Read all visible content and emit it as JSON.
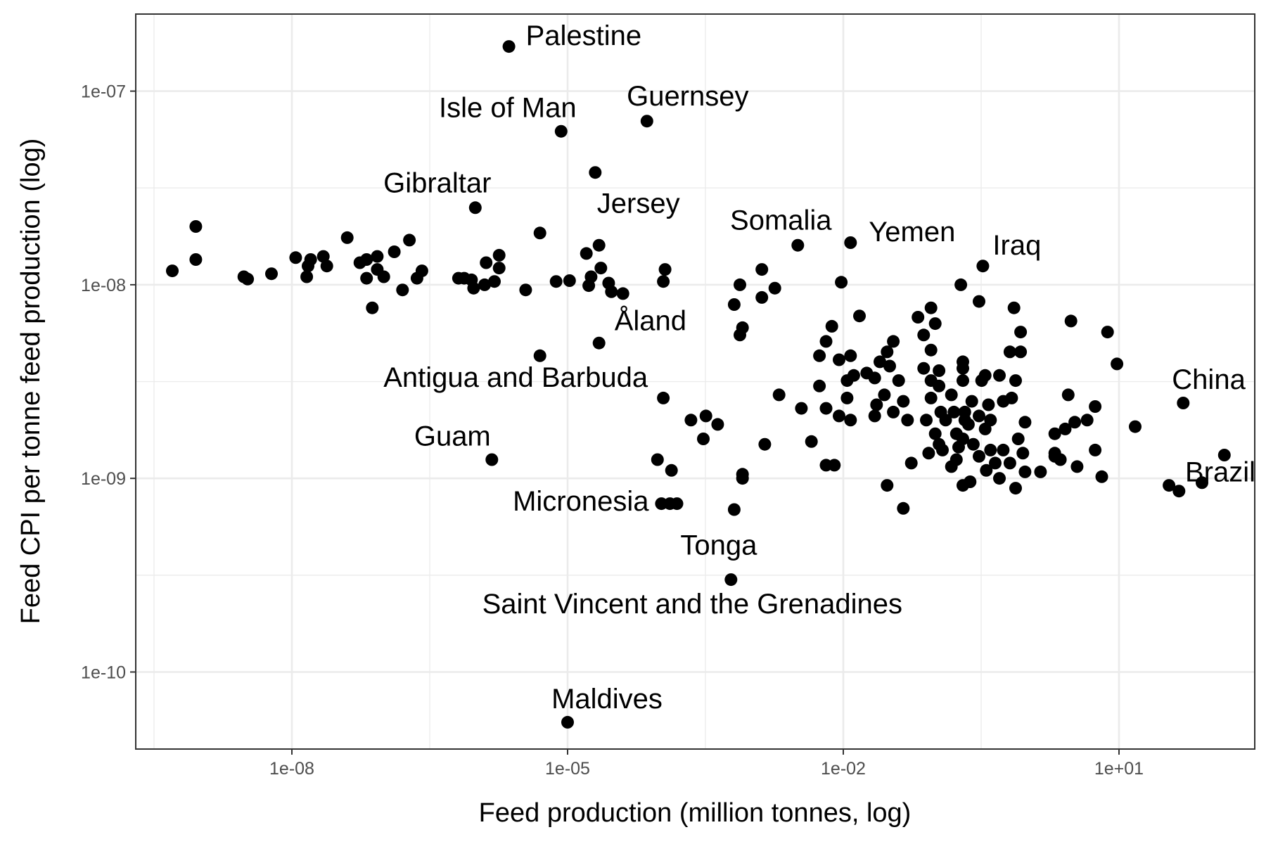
{
  "chart_data": {
    "type": "scatter",
    "xlabel": "Feed production (million tonnes, log)",
    "ylabel": "Feed CPI per tonne feed production (log)",
    "x_scale": "log",
    "y_scale": "log",
    "xlim": [
      2e-10,
      300.0
    ],
    "ylim": [
      4e-11,
      2.5e-07
    ],
    "grid": true,
    "legend": "none",
    "colors": {
      "point": "#000000",
      "grid": "#ebebeb",
      "panel_border": "#333333"
    },
    "x_ticks": [
      {
        "value": 1e-08,
        "label": "1e-08"
      },
      {
        "value": 1e-05,
        "label": "1e-05"
      },
      {
        "value": 0.01,
        "label": "1e-02"
      },
      {
        "value": 10.0,
        "label": "1e+01"
      }
    ],
    "y_ticks": [
      {
        "value": 1e-10,
        "label": "1e-10"
      },
      {
        "value": 1e-09,
        "label": "1e-09"
      },
      {
        "value": 1e-08,
        "label": "1e-08"
      },
      {
        "value": 1e-07,
        "label": "1e-07"
      }
    ],
    "labeled_points": [
      {
        "label": "Palestine",
        "x": 2.3e-06,
        "y": 1.7e-07
      },
      {
        "label": "Isle of Man",
        "x": 8.5e-06,
        "y": 6.2e-08
      },
      {
        "label": "Guernsey",
        "x": 7.3e-05,
        "y": 7e-08
      },
      {
        "label": "Gibraltar",
        "x": 9.9e-07,
        "y": 2.5e-08
      },
      {
        "label": "Jersey",
        "x": 2.2e-05,
        "y": 1.6e-08
      },
      {
        "label": "Somalia",
        "x": 0.0032,
        "y": 1.6e-08
      },
      {
        "label": "Yemen",
        "x": 0.012,
        "y": 1.65e-08
      },
      {
        "label": "Iraq",
        "x": 0.33,
        "y": 1.25e-08
      },
      {
        "label": "Åland",
        "x": 2.2e-05,
        "y": 5e-09
      },
      {
        "label": "Antigua and Barbuda",
        "x": 0.00011,
        "y": 2.6e-09
      },
      {
        "label": "China",
        "x": 50,
        "y": 2.45e-09
      },
      {
        "label": "Guam",
        "x": 1.5e-06,
        "y": 1.25e-09
      },
      {
        "label": "Brazil",
        "x": 80,
        "y": 9.5e-10
      },
      {
        "label": "Micronesia",
        "x": 0.00013,
        "y": 7.4e-10
      },
      {
        "label": "Tonga",
        "x": 0.00065,
        "y": 6.9e-10
      },
      {
        "label": "Saint Vincent and the Grenadines",
        "x": 0.0006,
        "y": 3e-10
      },
      {
        "label": "Maldives",
        "x": 1e-05,
        "y": 5.5e-11
      }
    ],
    "points": [
      [
        5e-10,
        1.18e-08
      ],
      [
        9e-10,
        2e-08
      ],
      [
        9e-10,
        1.35e-08
      ],
      [
        3e-09,
        1.1e-08
      ],
      [
        3.3e-09,
        1.07e-08
      ],
      [
        6e-09,
        1.14e-08
      ],
      [
        1.1e-08,
        1.38e-08
      ],
      [
        1.5e-08,
        1.25e-08
      ],
      [
        1.6e-08,
        1.35e-08
      ],
      [
        1.45e-08,
        1.1e-08
      ],
      [
        2.2e-08,
        1.4e-08
      ],
      [
        2.4e-08,
        1.25e-08
      ],
      [
        4e-08,
        1.75e-08
      ],
      [
        5.5e-08,
        1.3e-08
      ],
      [
        6.5e-08,
        1.35e-08
      ],
      [
        6.5e-08,
        1.08e-08
      ],
      [
        8.5e-08,
        1.4e-08
      ],
      [
        8.5e-08,
        1.2e-08
      ],
      [
        7.5e-08,
        7.6e-09
      ],
      [
        1e-07,
        1.1e-08
      ],
      [
        1.3e-07,
        1.48e-08
      ],
      [
        1.6e-07,
        9.4e-09
      ],
      [
        1.9e-07,
        1.7e-08
      ],
      [
        2.3e-07,
        1.08e-08
      ],
      [
        2.6e-07,
        1.18e-08
      ],
      [
        6.5e-07,
        1.08e-08
      ],
      [
        7.5e-07,
        1.08e-08
      ],
      [
        9e-07,
        1.06e-08
      ],
      [
        9.5e-07,
        9.6e-09
      ],
      [
        1.3e-06,
        1.3e-08
      ],
      [
        1.25e-06,
        1e-08
      ],
      [
        1.8e-06,
        1.42e-08
      ],
      [
        1.8e-06,
        1.22e-08
      ],
      [
        1.6e-06,
        1.04e-08
      ],
      [
        3.5e-06,
        9.4e-09
      ],
      [
        5e-06,
        1.85e-08
      ],
      [
        7.5e-06,
        1.04e-08
      ],
      [
        1.05e-05,
        1.05e-08
      ],
      [
        5e-06,
        4.3e-09
      ],
      [
        2e-05,
        3.8e-08
      ],
      [
        1.6e-05,
        1.45e-08
      ],
      [
        2.3e-05,
        1.22e-08
      ],
      [
        1.8e-05,
        1.1e-08
      ],
      [
        1.7e-05,
        9.9e-09
      ],
      [
        2.8e-05,
        1.02e-08
      ],
      [
        3e-05,
        9.2e-09
      ],
      [
        4e-05,
        9e-09
      ],
      [
        0.000115,
        1.2e-08
      ],
      [
        0.00011,
        1.04e-08
      ],
      [
        0.00022,
        2e-09
      ],
      [
        0.00032,
        2.1e-09
      ],
      [
        0.0003,
        1.6e-09
      ],
      [
        0.00043,
        1.9e-09
      ],
      [
        9.5e-05,
        1.25e-09
      ],
      [
        0.000135,
        1.1e-09
      ],
      [
        0.000105,
        7.4e-10
      ],
      [
        0.000155,
        7.4e-10
      ],
      [
        0.00075,
        1e-08
      ],
      [
        0.00065,
        7.9e-09
      ],
      [
        0.0008,
        6e-09
      ],
      [
        0.00075,
        5.5e-09
      ],
      [
        0.0013,
        1.2e-08
      ],
      [
        0.0013,
        8.6e-09
      ],
      [
        0.0018,
        9.6e-09
      ],
      [
        0.0008,
        1.05e-09
      ],
      [
        0.0008,
        1e-09
      ],
      [
        0.0014,
        1.5e-09
      ],
      [
        0.002,
        2.7e-09
      ],
      [
        0.0035,
        2.3e-09
      ],
      [
        0.0045,
        1.55e-09
      ],
      [
        0.0055,
        4.3e-09
      ],
      [
        0.0065,
        5.1e-09
      ],
      [
        0.0075,
        6.1e-09
      ],
      [
        0.0055,
        3e-09
      ],
      [
        0.0065,
        2.3e-09
      ],
      [
        0.0065,
        1.17e-09
      ],
      [
        0.008,
        1.17e-09
      ],
      [
        0.0095,
        1.03e-08
      ],
      [
        0.015,
        6.9e-09
      ],
      [
        0.012,
        4.3e-09
      ],
      [
        0.009,
        4.1e-09
      ],
      [
        0.011,
        3.2e-09
      ],
      [
        0.013,
        3.4e-09
      ],
      [
        0.011,
        2.6e-09
      ],
      [
        0.009,
        2.1e-09
      ],
      [
        0.012,
        2e-09
      ],
      [
        0.018,
        3.5e-09
      ],
      [
        0.022,
        3.3e-09
      ],
      [
        0.025,
        4e-09
      ],
      [
        0.03,
        4.5e-09
      ],
      [
        0.035,
        5.1e-09
      ],
      [
        0.032,
        3.8e-09
      ],
      [
        0.04,
        3.2e-09
      ],
      [
        0.023,
        2.4e-09
      ],
      [
        0.028,
        2.7e-09
      ],
      [
        0.035,
        2.2e-09
      ],
      [
        0.045,
        2.5e-09
      ],
      [
        0.022,
        2.1e-09
      ],
      [
        0.05,
        2e-09
      ],
      [
        0.055,
        1.2e-09
      ],
      [
        0.03,
        9.2e-10
      ],
      [
        0.045,
        7e-10
      ],
      [
        0.065,
        6.8e-09
      ],
      [
        0.075,
        5.5e-09
      ],
      [
        0.09,
        7.6e-09
      ],
      [
        0.09,
        4.6e-09
      ],
      [
        0.1,
        6.3e-09
      ],
      [
        0.075,
        3.7e-09
      ],
      [
        0.09,
        3.2e-09
      ],
      [
        0.11,
        3.6e-09
      ],
      [
        0.11,
        3e-09
      ],
      [
        0.09,
        2.6e-09
      ],
      [
        0.08,
        2e-09
      ],
      [
        0.1,
        1.7e-09
      ],
      [
        0.11,
        1.5e-09
      ],
      [
        0.085,
        1.35e-09
      ],
      [
        0.115,
        2.2e-09
      ],
      [
        0.13,
        2e-09
      ],
      [
        0.12,
        1.4e-09
      ],
      [
        0.15,
        2.7e-09
      ],
      [
        0.16,
        2.2e-09
      ],
      [
        0.15,
        1.15e-09
      ],
      [
        0.17,
        1.7e-09
      ],
      [
        0.18,
        1.45e-09
      ],
      [
        0.17,
        1.25e-09
      ],
      [
        0.19,
        1e-08
      ],
      [
        0.2,
        4e-09
      ],
      [
        0.2,
        3.7e-09
      ],
      [
        0.2,
        3.2e-09
      ],
      [
        0.21,
        2.2e-09
      ],
      [
        0.21,
        2e-09
      ],
      [
        0.23,
        1.9e-09
      ],
      [
        0.2,
        1.6e-09
      ],
      [
        0.2,
        9.2e-10
      ],
      [
        0.25,
        2.5e-09
      ],
      [
        0.26,
        1.5e-09
      ],
      [
        0.24,
        9.6e-10
      ],
      [
        0.3,
        8.2e-09
      ],
      [
        0.32,
        3.2e-09
      ],
      [
        0.3,
        2.1e-09
      ],
      [
        0.3,
        1.3e-09
      ],
      [
        0.35,
        3.4e-09
      ],
      [
        0.38,
        2.4e-09
      ],
      [
        0.35,
        1.8e-09
      ],
      [
        0.4,
        1.4e-09
      ],
      [
        0.36,
        1.1e-09
      ],
      [
        0.4,
        2e-09
      ],
      [
        0.45,
        1.2e-09
      ],
      [
        0.5,
        3.4e-09
      ],
      [
        0.55,
        2.5e-09
      ],
      [
        0.55,
        1.4e-09
      ],
      [
        0.5,
        1e-09
      ],
      [
        0.65,
        4.5e-09
      ],
      [
        0.68,
        2.6e-09
      ],
      [
        0.75,
        3.2e-09
      ],
      [
        0.8,
        1.6e-09
      ],
      [
        0.65,
        1.2e-09
      ],
      [
        0.75,
        8.9e-10
      ],
      [
        0.72,
        7.6e-09
      ],
      [
        0.85,
        5.7e-09
      ],
      [
        0.85,
        4.5e-09
      ],
      [
        0.9,
        1.35e-09
      ],
      [
        0.95,
        1.95e-09
      ],
      [
        0.95,
        1.08e-09
      ],
      [
        1.4,
        1.08e-09
      ],
      [
        2.0,
        1.7e-09
      ],
      [
        2.0,
        1.35e-09
      ],
      [
        2.0,
        1.3e-09
      ],
      [
        2.3,
        1.25e-09
      ],
      [
        2.8,
        2.7e-09
      ],
      [
        2.6,
        1.8e-09
      ],
      [
        3.3,
        1.95e-09
      ],
      [
        3.0,
        6.5e-09
      ],
      [
        3.5,
        1.15e-09
      ],
      [
        4.5,
        2e-09
      ],
      [
        5.5,
        2.35e-09
      ],
      [
        5.5,
        1.4e-09
      ],
      [
        7.5,
        5.7e-09
      ],
      [
        9.5,
        3.9e-09
      ],
      [
        6.5,
        1.02e-09
      ],
      [
        15,
        1.85e-09
      ],
      [
        35,
        9.2e-10
      ],
      [
        45,
        8.6e-10
      ],
      [
        140,
        1.32e-09
      ]
    ]
  }
}
